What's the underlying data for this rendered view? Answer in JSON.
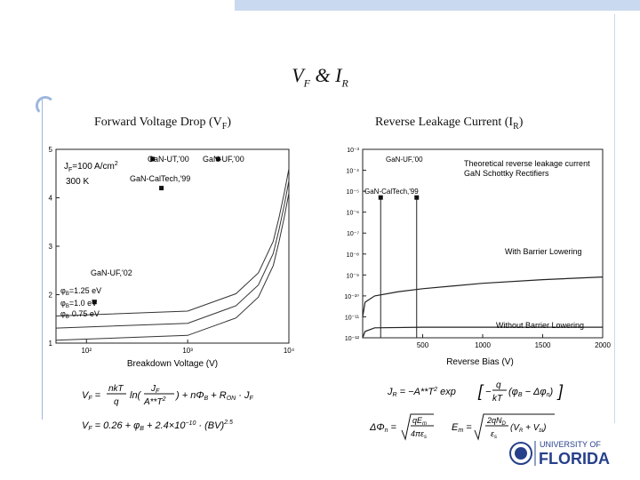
{
  "slide": {
    "title_main": "V",
    "title_sub1": "F",
    "title_amp": " & I",
    "title_sub2": "R"
  },
  "left": {
    "title": "Forward Voltage Drop (V",
    "title_sub": "F",
    "title_end": ")",
    "legend_jf": "J",
    "legend_jf_sub": "F",
    "legend_jf_val": "=100 A/cm",
    "legend_temp": "300 K",
    "label_ut00": "GaN-UT,'00",
    "label_uf00": "GaN-UF,'00",
    "label_caltech99": "GaN-CalTech,'99",
    "label_uf02": "GaN-UF,'02",
    "curve1": "φ",
    "curve1_val": "=1.25 eV",
    "curve2_val": "=1.0 eV",
    "curve3_val": "0.75 eV",
    "xlabel": "Breakdown Voltage (V)",
    "eq1": "V_F = (nkT/q) ln( J_F / A**T² ) + nΦ_B + R_ON · J_F",
    "eq2": "V_F = 0.26 + φ_B + 2.4×10⁻¹⁰ · (BV)^2.5"
  },
  "right": {
    "title": "Reverse Leakage Current (I",
    "title_sub": "R",
    "title_end": ")",
    "legend_line1": "Theoretical reverse leakage current",
    "legend_line2": "GaN Schottky Rectifiers",
    "label_uf00": "GaN-UF,'00",
    "label_caltech99": "GaN-CalTech,'99",
    "label_with": "With Barrier Lowering",
    "label_without": "Without Barrier Lowering",
    "xlabel": "Reverse Bias (V)",
    "eq1": "J_R = −A**T² exp[ −(q/kT)(φ_B − Δφ_n) ]",
    "eq2": "ΔΦ_n = √(qE_m / 4πε_s)      E_m = √( 2qN_D/ε_s (V_R + V_bi) )"
  },
  "logo": {
    "line1": "UNIVERSITY OF",
    "line2": "FLORIDA"
  },
  "chart_data": [
    {
      "type": "line",
      "title": "Forward Voltage Drop (VF)",
      "xlabel": "Breakdown Voltage (V)",
      "ylabel": "",
      "xscale": "log",
      "xlim": [
        50,
        10000
      ],
      "ylim": [
        1,
        5
      ],
      "xticks": [
        "10²",
        "10³",
        "10⁴"
      ],
      "yticks": [
        "1",
        "2",
        "3",
        "4",
        "5"
      ],
      "series": [
        {
          "name": "φB=1.25 eV",
          "x": [
            50,
            1000,
            3000,
            5000,
            7000,
            8000,
            9000,
            10000
          ],
          "y": [
            1.56,
            1.66,
            2.02,
            2.45,
            3.1,
            3.6,
            4.1,
            4.6
          ]
        },
        {
          "name": "φB=1.0 eV",
          "x": [
            50,
            1000,
            3000,
            5000,
            7000,
            8000,
            9000,
            10000
          ],
          "y": [
            1.31,
            1.41,
            1.77,
            2.2,
            2.85,
            3.35,
            3.85,
            4.35
          ]
        },
        {
          "name": "φB 0.75 eV",
          "x": [
            50,
            1000,
            3000,
            5000,
            7000,
            8000,
            9000,
            10000
          ],
          "y": [
            1.06,
            1.16,
            1.52,
            1.95,
            2.6,
            3.1,
            3.6,
            4.1
          ]
        }
      ],
      "points": [
        {
          "label": "GaN-UT,'00",
          "x": 450,
          "y": 4.8
        },
        {
          "label": "GaN-UF,'00",
          "x": 2000,
          "y": 4.8
        },
        {
          "label": "GaN-CalTech,'99",
          "x": 550,
          "y": 4.2
        },
        {
          "label": "GaN-UF,'02",
          "x": 120,
          "y": 1.85
        }
      ]
    },
    {
      "type": "line",
      "title": "Reverse Leakage Current (IR)",
      "xlabel": "Reverse Bias (V)",
      "ylabel": "",
      "yscale": "log",
      "xlim": [
        0,
        2000
      ],
      "ylim": [
        1e-12,
        0.001
      ],
      "xticks": [
        "500",
        "1000",
        "1500",
        "2000"
      ],
      "yticks": [
        "10⁻³",
        "10⁻⁴",
        "10⁻⁵",
        "10⁻⁶",
        "10⁻⁷",
        "10⁻⁸",
        "10⁻⁹",
        "10⁻¹⁰",
        "10⁻¹¹",
        "10⁻¹²"
      ],
      "series": [
        {
          "name": "With Barrier Lowering",
          "x": [
            0,
            20,
            100,
            300,
            500,
            1000,
            1500,
            2000
          ],
          "y": [
            1e-11,
            5e-11,
            1e-10,
            1.6e-10,
            2.2e-10,
            4e-10,
            6e-10,
            8e-10
          ]
        },
        {
          "name": "Without Barrier Lowering",
          "x": [
            0,
            20,
            100,
            500,
            1000,
            1500,
            2000
          ],
          "y": [
            1e-12,
            2e-12,
            3e-12,
            3.2e-12,
            3.2e-12,
            3.2e-12,
            3.2e-12
          ]
        }
      ],
      "points": [
        {
          "label": "GaN-UF,'00",
          "x": 450,
          "y": 5e-06
        },
        {
          "label": "GaN-CalTech,'99",
          "x": 150,
          "y": 5e-06
        }
      ]
    }
  ]
}
